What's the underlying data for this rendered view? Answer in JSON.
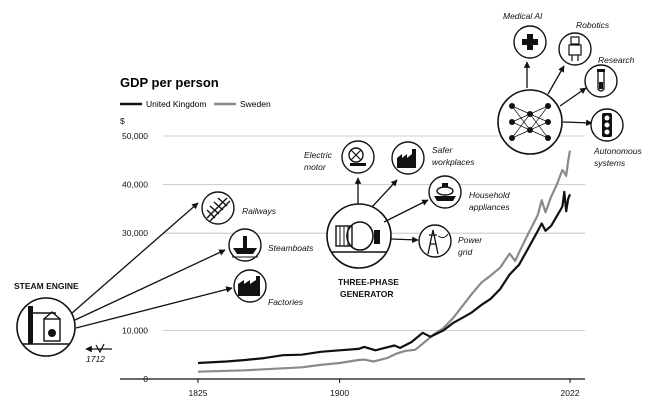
{
  "chart_data": {
    "type": "line",
    "title": "GDP per person",
    "ylabel": "$",
    "xlim": [
      1825,
      2022
    ],
    "ylim": [
      0,
      50000
    ],
    "x_ticks": [
      {
        "value": 1825,
        "label": "1825"
      },
      {
        "value": 1900,
        "label": "1900"
      },
      {
        "value": 2022,
        "label": "2022"
      }
    ],
    "y_ticks": [
      {
        "value": 0,
        "label": "0"
      },
      {
        "value": 10000,
        "label": "10,000"
      },
      {
        "value": 30000,
        "label": "30,000"
      },
      {
        "value": 40000,
        "label": "40,000"
      },
      {
        "value": 50000,
        "label": "50,000"
      }
    ],
    "series": [
      {
        "name": "United Kingdom",
        "color": "#111111",
        "points": [
          [
            1825,
            3300
          ],
          [
            1840,
            3600
          ],
          [
            1850,
            3900
          ],
          [
            1860,
            4300
          ],
          [
            1870,
            4900
          ],
          [
            1880,
            5000
          ],
          [
            1890,
            5600
          ],
          [
            1900,
            5900
          ],
          [
            1910,
            6200
          ],
          [
            1913,
            6600
          ],
          [
            1919,
            5900
          ],
          [
            1929,
            6900
          ],
          [
            1932,
            6400
          ],
          [
            1938,
            7600
          ],
          [
            1944,
            9500
          ],
          [
            1948,
            8700
          ],
          [
            1955,
            10000
          ],
          [
            1960,
            11500
          ],
          [
            1965,
            12600
          ],
          [
            1970,
            13700
          ],
          [
            1975,
            15200
          ],
          [
            1980,
            16500
          ],
          [
            1985,
            18500
          ],
          [
            1990,
            21500
          ],
          [
            1995,
            23500
          ],
          [
            2000,
            27000
          ],
          [
            2005,
            30500
          ],
          [
            2007,
            32000
          ],
          [
            2009,
            30500
          ],
          [
            2012,
            31500
          ],
          [
            2015,
            33500
          ],
          [
            2018,
            35500
          ],
          [
            2019,
            38500
          ],
          [
            2020,
            34500
          ],
          [
            2021,
            37000
          ],
          [
            2022,
            38000
          ]
        ]
      },
      {
        "name": "Sweden",
        "color": "#8a8a8a",
        "points": [
          [
            1825,
            1500
          ],
          [
            1850,
            1800
          ],
          [
            1870,
            2200
          ],
          [
            1880,
            2400
          ],
          [
            1890,
            2900
          ],
          [
            1900,
            3300
          ],
          [
            1910,
            3900
          ],
          [
            1913,
            4000
          ],
          [
            1918,
            3600
          ],
          [
            1925,
            4300
          ],
          [
            1930,
            5200
          ],
          [
            1935,
            5800
          ],
          [
            1940,
            6000
          ],
          [
            1945,
            7600
          ],
          [
            1950,
            9200
          ],
          [
            1955,
            10500
          ],
          [
            1960,
            12500
          ],
          [
            1965,
            15000
          ],
          [
            1970,
            17500
          ],
          [
            1975,
            19800
          ],
          [
            1980,
            21300
          ],
          [
            1985,
            22900
          ],
          [
            1990,
            25800
          ],
          [
            1993,
            24300
          ],
          [
            1995,
            26000
          ],
          [
            2000,
            30000
          ],
          [
            2005,
            33800
          ],
          [
            2007,
            36800
          ],
          [
            2009,
            34300
          ],
          [
            2012,
            37500
          ],
          [
            2015,
            40000
          ],
          [
            2018,
            43000
          ],
          [
            2019,
            42500
          ],
          [
            2020,
            41800
          ],
          [
            2021,
            44800
          ],
          [
            2022,
            47000
          ]
        ]
      }
    ],
    "annotations": {
      "steam_engine": "STEAM ENGINE",
      "year_1712": "1712",
      "railways": "Railways",
      "steamboats": "Steamboats",
      "factories": "Factories",
      "generator_line1": "THREE-PHASE",
      "generator_line2": "GENERATOR",
      "electric_line1": "Electric",
      "electric_line2": "motor",
      "safer_line1": "Safer",
      "safer_line2": "workplaces",
      "household_line1": "Household",
      "household_line2": "appliances",
      "power_line1": "Power",
      "power_line2": "grid",
      "medical_ai": "Medical AI",
      "robotics": "Robotics",
      "research": "Research",
      "autonomous_line1": "Autonomous",
      "autonomous_line2": "systems"
    }
  }
}
